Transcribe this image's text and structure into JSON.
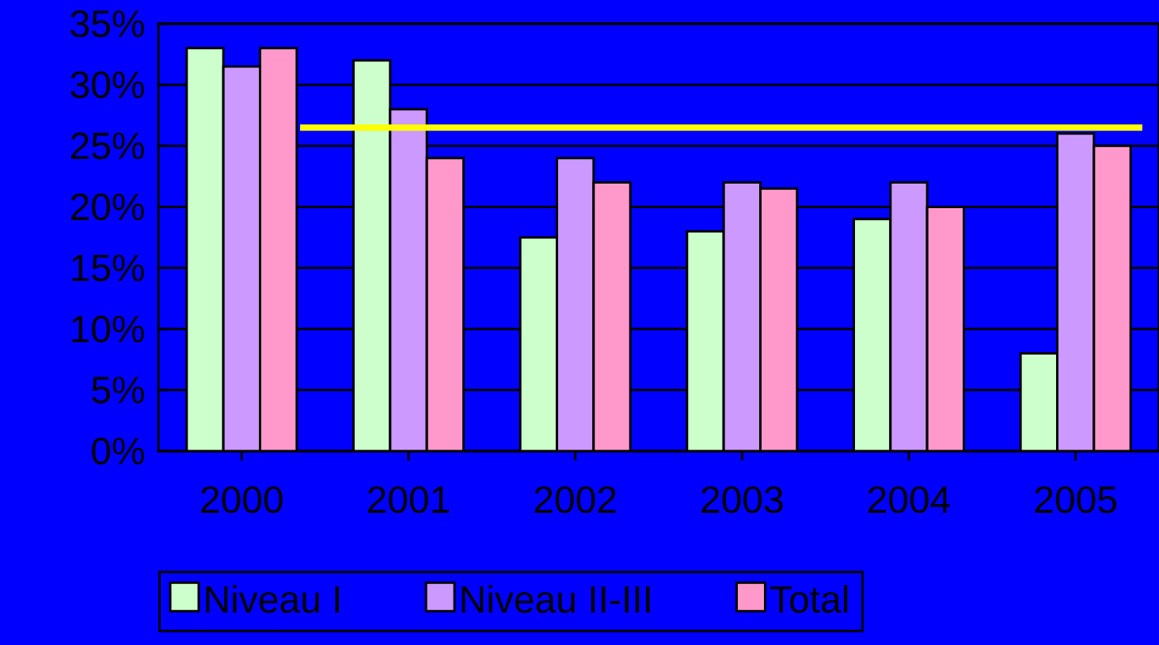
{
  "chart_data": {
    "type": "bar",
    "categories": [
      "2000",
      "2001",
      "2002",
      "2003",
      "2004",
      "2005"
    ],
    "series": [
      {
        "name": "Niveau I",
        "color": "#ccffcc",
        "values": [
          33,
          32,
          17.5,
          18,
          19,
          8
        ]
      },
      {
        "name": "Niveau II-III",
        "color": "#cc99ff",
        "values": [
          31.5,
          28,
          24,
          22,
          22,
          26
        ]
      },
      {
        "name": "Total",
        "color": "#ff99cc",
        "values": [
          33,
          24,
          22,
          21.5,
          20,
          25
        ]
      }
    ],
    "ylim": [
      0,
      35
    ],
    "yticks": [
      {
        "value": 0,
        "label": "0%"
      },
      {
        "value": 5,
        "label": "5%"
      },
      {
        "value": 10,
        "label": "10%"
      },
      {
        "value": 15,
        "label": "15%"
      },
      {
        "value": 20,
        "label": "20%"
      },
      {
        "value": 25,
        "label": "25%"
      },
      {
        "value": 30,
        "label": "30%"
      },
      {
        "value": 35,
        "label": "35%"
      }
    ],
    "ref_lines": [
      {
        "axis": "y",
        "value": 26.5,
        "color": "#ffff00"
      }
    ],
    "grid": "y",
    "legend": "bottom"
  }
}
